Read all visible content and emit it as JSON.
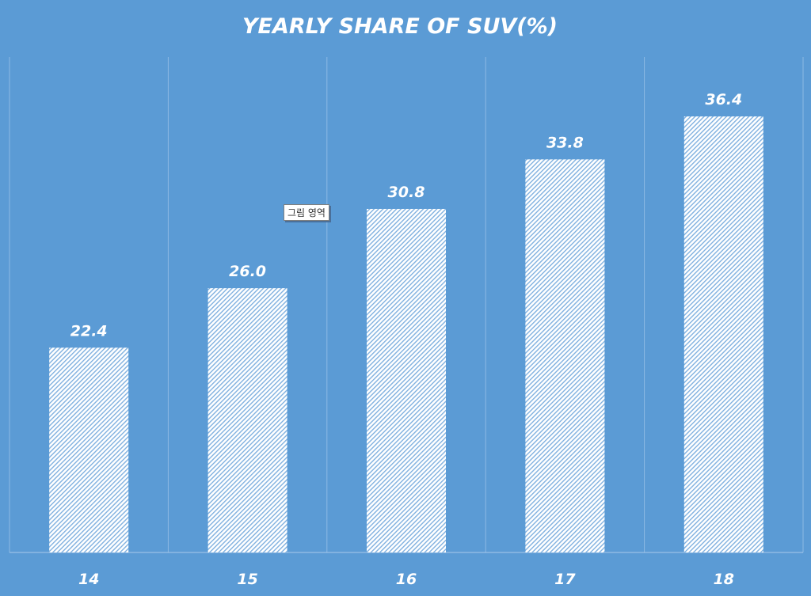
{
  "chart_data": {
    "type": "bar",
    "title": "YEARLY SHARE OF SUV(%)",
    "categories": [
      "14",
      "15",
      "16",
      "17",
      "18"
    ],
    "values": [
      22.4,
      26.0,
      30.8,
      33.8,
      36.4
    ],
    "value_labels": [
      "22.4",
      "26.0",
      "30.8",
      "33.8",
      "36.4"
    ],
    "xlabel": "",
    "ylabel": "",
    "ylim": [
      10,
      40
    ],
    "grid": "vertical category separators",
    "legend": "none"
  },
  "colors": {
    "background": "#5b9bd5",
    "bar": "#ffffff"
  },
  "tooltip": "그림 영역"
}
